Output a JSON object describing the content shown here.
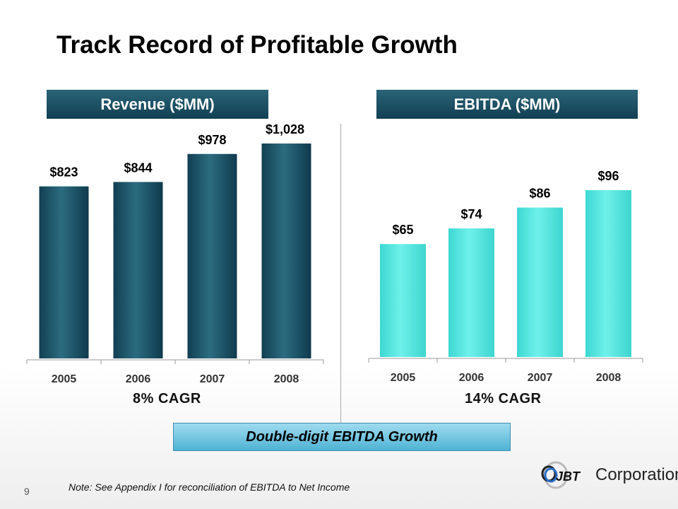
{
  "title": "Track Record of Profitable Growth",
  "chart_data": [
    {
      "type": "bar",
      "title": "Revenue ($MM)",
      "categories": [
        "2005",
        "2006",
        "2007",
        "2008"
      ],
      "values": [
        823,
        844,
        978,
        1028
      ],
      "labels": [
        "$823",
        "$844",
        "$978",
        "$1,028"
      ],
      "ylim": [
        0,
        1028
      ],
      "annotation": "8% CAGR",
      "color": "#1b4d63"
    },
    {
      "type": "bar",
      "title": "EBITDA ($MM)",
      "categories": [
        "2005",
        "2006",
        "2007",
        "2008"
      ],
      "values": [
        65,
        74,
        86,
        96
      ],
      "labels": [
        "$65",
        "$74",
        "$86",
        "$96"
      ],
      "ylim": [
        0,
        96
      ],
      "annotation": "14% CAGR",
      "color": "#4fe3dc"
    }
  ],
  "banner": "Double-digit EBITDA Growth",
  "note": "Note: See Appendix I for reconciliation of EBITDA to Net Income",
  "page_number": "9",
  "logo": {
    "mark": "JBT",
    "text": "Corporation"
  }
}
